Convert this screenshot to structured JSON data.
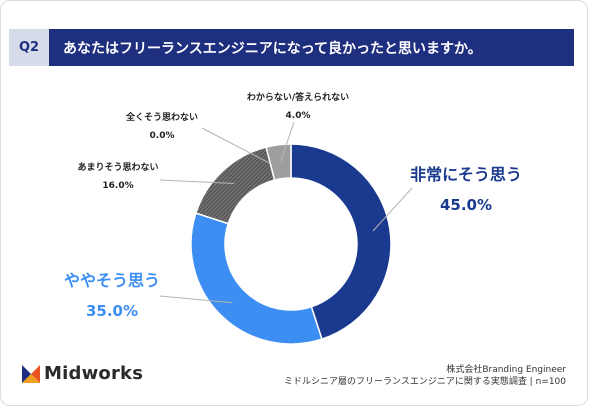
{
  "header": {
    "badge": "Q2",
    "question": "あなたはフリーランスエンジニアになって良かったと思いますか。"
  },
  "chart_data": {
    "type": "pie",
    "donut": true,
    "slices": [
      {
        "label": "非常にそう思う",
        "value": 45.0,
        "value_label": "45.0%",
        "color": "#1a3a8f"
      },
      {
        "label": "ややそう思う",
        "value": 35.0,
        "value_label": "35.0%",
        "color": "#3d8ef2"
      },
      {
        "label": "あまりそう思わない",
        "value": 16.0,
        "value_label": "16.0%",
        "color": "#555555"
      },
      {
        "label": "全くそう思わない",
        "value": 0.0,
        "value_label": "0.0%",
        "color": "#3a3a3a"
      },
      {
        "label": "わからない/答えられない",
        "value": 4.0,
        "value_label": "4.0%",
        "color": "#9e9e9e"
      }
    ]
  },
  "footer": {
    "brand": "Midworks",
    "source_line1": "株式会社Branding Engineer",
    "source_line2": "ミドルシニア層のフリーランスエンジニアに関する実態調査 | n=100"
  }
}
